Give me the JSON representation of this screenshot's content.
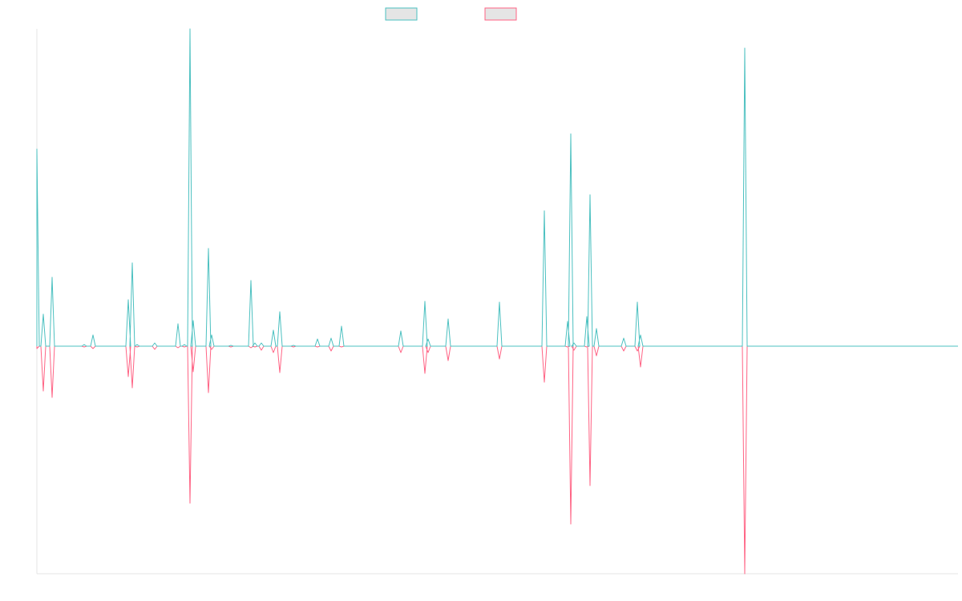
{
  "chart_data": {
    "type": "line",
    "title": "",
    "xlabel": "",
    "ylabel": "",
    "xlim": [
      0,
      1149
    ],
    "ylim": [
      -284,
      396
    ],
    "grid": false,
    "legend_placement": "top-center",
    "baseline": 0,
    "series": [
      {
        "name": "",
        "color": "#4bc0c0",
        "spikes": [
          [
            0,
            246
          ],
          [
            8,
            40
          ],
          [
            19,
            86
          ],
          [
            59,
            2
          ],
          [
            70,
            14
          ],
          [
            114,
            58
          ],
          [
            119,
            104
          ],
          [
            125,
            2
          ],
          [
            147,
            4
          ],
          [
            176,
            28
          ],
          [
            184,
            2
          ],
          [
            191,
            396
          ],
          [
            195,
            32
          ],
          [
            214,
            122
          ],
          [
            218,
            14
          ],
          [
            242,
            1
          ],
          [
            267,
            82
          ],
          [
            272,
            4
          ],
          [
            280,
            4
          ],
          [
            295,
            20
          ],
          [
            303,
            43
          ],
          [
            320,
            1
          ],
          [
            350,
            9
          ],
          [
            367,
            10
          ],
          [
            380,
            25
          ],
          [
            454,
            19
          ],
          [
            484,
            56
          ],
          [
            488,
            9
          ],
          [
            513,
            34
          ],
          [
            577,
            55
          ],
          [
            633,
            169
          ],
          [
            662,
            31
          ],
          [
            666,
            265
          ],
          [
            670,
            4
          ],
          [
            686,
            37
          ],
          [
            690,
            189
          ],
          [
            698,
            22
          ],
          [
            732,
            10
          ],
          [
            749,
            55
          ],
          [
            753,
            14
          ],
          [
            883,
            372
          ]
        ]
      },
      {
        "name": "",
        "color": "#ff6384",
        "spikes": [
          [
            0,
            -3
          ],
          [
            8,
            -56
          ],
          [
            19,
            -64
          ],
          [
            59,
            -1
          ],
          [
            70,
            -3
          ],
          [
            114,
            -38
          ],
          [
            119,
            -52
          ],
          [
            125,
            -1
          ],
          [
            147,
            -4
          ],
          [
            176,
            -2
          ],
          [
            184,
            -1
          ],
          [
            191,
            -196
          ],
          [
            195,
            -32
          ],
          [
            214,
            -58
          ],
          [
            218,
            -4
          ],
          [
            242,
            -1
          ],
          [
            267,
            -2
          ],
          [
            272,
            -1
          ],
          [
            280,
            -5
          ],
          [
            295,
            -8
          ],
          [
            303,
            -33
          ],
          [
            320,
            -1
          ],
          [
            350,
            -1
          ],
          [
            367,
            -6
          ],
          [
            380,
            -1
          ],
          [
            454,
            -8
          ],
          [
            484,
            -34
          ],
          [
            488,
            -8
          ],
          [
            513,
            -18
          ],
          [
            577,
            -16
          ],
          [
            633,
            -45
          ],
          [
            662,
            -1
          ],
          [
            666,
            -222
          ],
          [
            670,
            -5
          ],
          [
            686,
            -1
          ],
          [
            690,
            -174
          ],
          [
            698,
            -12
          ],
          [
            732,
            -6
          ],
          [
            749,
            -6
          ],
          [
            753,
            -26
          ],
          [
            883,
            -284
          ]
        ]
      }
    ]
  }
}
